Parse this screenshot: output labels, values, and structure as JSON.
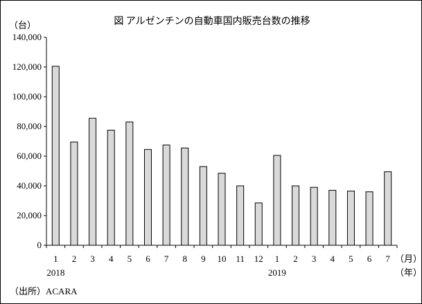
{
  "chart_data": {
    "type": "bar",
    "title": "図 アルゼンチンの自動車国内販売台数の推移",
    "y_unit_label": "（台）",
    "x_unit_month": "（月）",
    "x_unit_year": "（年）",
    "source": "（出所）ACARA",
    "ylim": [
      0,
      140000
    ],
    "y_ticks": [
      0,
      20000,
      40000,
      60000,
      80000,
      100000,
      120000,
      140000
    ],
    "y_tick_labels": [
      "0",
      "20,000",
      "40,000",
      "60,000",
      "80,000",
      "100,000",
      "120,000",
      "140,000"
    ],
    "grid": false,
    "bar_color": "#d9d9d9",
    "bar_edge_color": "#000000",
    "categories": [
      "1",
      "2",
      "3",
      "4",
      "5",
      "6",
      "7",
      "8",
      "9",
      "10",
      "11",
      "12",
      "1",
      "2",
      "3",
      "4",
      "5",
      "6",
      "7"
    ],
    "year_labels": [
      {
        "label": "2018",
        "index": 0
      },
      {
        "label": "2019",
        "index": 12
      }
    ],
    "values": [
      120500,
      69500,
      85500,
      77500,
      83000,
      64500,
      67500,
      65500,
      53000,
      48500,
      40000,
      28500,
      60500,
      40000,
      39000,
      37000,
      36500,
      36000,
      49500
    ]
  }
}
